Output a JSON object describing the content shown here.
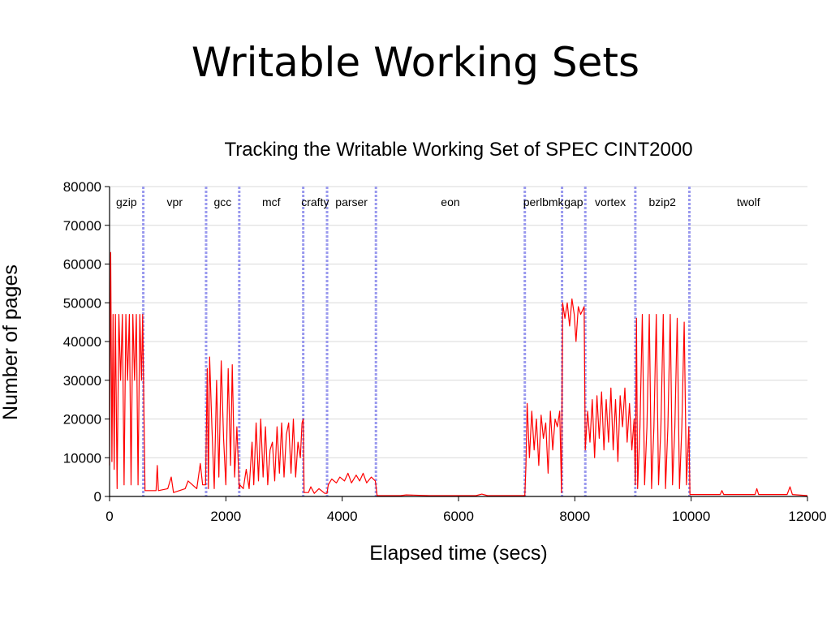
{
  "slide": {
    "title": "Writable Working Sets"
  },
  "colors": {
    "line": "#ff0000",
    "divider": "#9999ee",
    "grid": "#d9d9d9",
    "axis": "#000000"
  },
  "chart_data": {
    "type": "line",
    "title": "Tracking the Writable Working Set of SPEC CINT2000",
    "xlabel": "Elapsed time (secs)",
    "ylabel": "Number of pages",
    "xlim": [
      0,
      12000
    ],
    "ylim": [
      0,
      80000
    ],
    "xticks": [
      0,
      2000,
      4000,
      6000,
      8000,
      10000,
      12000
    ],
    "yticks": [
      0,
      10000,
      20000,
      30000,
      40000,
      50000,
      60000,
      70000,
      80000
    ],
    "grid": "horizontal",
    "benchmarks": [
      {
        "name": "gzip",
        "start": 0,
        "end": 580
      },
      {
        "name": "vpr",
        "start": 580,
        "end": 1660
      },
      {
        "name": "gcc",
        "start": 1660,
        "end": 2230
      },
      {
        "name": "mcf",
        "start": 2230,
        "end": 3330
      },
      {
        "name": "crafty",
        "start": 3330,
        "end": 3740
      },
      {
        "name": "parser",
        "start": 3740,
        "end": 4580
      },
      {
        "name": "eon",
        "start": 4580,
        "end": 7140
      },
      {
        "name": "perlbmk",
        "start": 7140,
        "end": 7780
      },
      {
        "name": "gap",
        "start": 7780,
        "end": 8180
      },
      {
        "name": "vortex",
        "start": 8180,
        "end": 9040
      },
      {
        "name": "bzip2",
        "start": 9040,
        "end": 9970
      },
      {
        "name": "twolf",
        "start": 9970,
        "end": 12000
      }
    ],
    "series": [
      {
        "name": "",
        "points": [
          [
            0,
            8000
          ],
          [
            20,
            63000
          ],
          [
            40,
            9000
          ],
          [
            60,
            47000
          ],
          [
            80,
            7000
          ],
          [
            100,
            47000
          ],
          [
            130,
            2000
          ],
          [
            160,
            47000
          ],
          [
            190,
            30000
          ],
          [
            220,
            47000
          ],
          [
            250,
            3000
          ],
          [
            280,
            47000
          ],
          [
            310,
            30000
          ],
          [
            340,
            47000
          ],
          [
            370,
            3000
          ],
          [
            400,
            47000
          ],
          [
            430,
            30000
          ],
          [
            460,
            47000
          ],
          [
            490,
            3000
          ],
          [
            520,
            47000
          ],
          [
            550,
            30000
          ],
          [
            570,
            47000
          ],
          [
            590,
            23000
          ],
          [
            610,
            1500
          ],
          [
            800,
            1500
          ],
          [
            820,
            8000
          ],
          [
            840,
            1500
          ],
          [
            1000,
            2000
          ],
          [
            1060,
            5000
          ],
          [
            1100,
            1000
          ],
          [
            1300,
            2000
          ],
          [
            1350,
            4000
          ],
          [
            1500,
            2000
          ],
          [
            1560,
            8500
          ],
          [
            1600,
            3000
          ],
          [
            1650,
            3000
          ],
          [
            1680,
            33000
          ],
          [
            1700,
            2000
          ],
          [
            1720,
            36000
          ],
          [
            1760,
            18000
          ],
          [
            1800,
            2000
          ],
          [
            1840,
            30000
          ],
          [
            1880,
            5000
          ],
          [
            1920,
            35000
          ],
          [
            1960,
            15000
          ],
          [
            2000,
            3000
          ],
          [
            2040,
            33000
          ],
          [
            2080,
            8000
          ],
          [
            2110,
            34000
          ],
          [
            2150,
            5000
          ],
          [
            2190,
            18000
          ],
          [
            2230,
            2000
          ],
          [
            2240,
            3000
          ],
          [
            2300,
            2000
          ],
          [
            2350,
            7000
          ],
          [
            2400,
            2000
          ],
          [
            2450,
            14000
          ],
          [
            2480,
            3000
          ],
          [
            2520,
            19000
          ],
          [
            2560,
            4000
          ],
          [
            2600,
            20000
          ],
          [
            2640,
            5000
          ],
          [
            2680,
            18000
          ],
          [
            2720,
            3000
          ],
          [
            2760,
            12000
          ],
          [
            2800,
            14000
          ],
          [
            2840,
            4000
          ],
          [
            2880,
            18000
          ],
          [
            2920,
            6000
          ],
          [
            2960,
            19000
          ],
          [
            3000,
            5000
          ],
          [
            3040,
            16000
          ],
          [
            3080,
            19000
          ],
          [
            3120,
            6000
          ],
          [
            3160,
            20000
          ],
          [
            3200,
            5000
          ],
          [
            3240,
            14000
          ],
          [
            3280,
            10000
          ],
          [
            3310,
            19000
          ],
          [
            3330,
            20000
          ],
          [
            3345,
            1000
          ],
          [
            3420,
            1000
          ],
          [
            3460,
            2500
          ],
          [
            3520,
            800
          ],
          [
            3600,
            2000
          ],
          [
            3700,
            800
          ],
          [
            3740,
            800
          ],
          [
            3760,
            3000
          ],
          [
            3820,
            4500
          ],
          [
            3900,
            3500
          ],
          [
            3960,
            5000
          ],
          [
            4040,
            4000
          ],
          [
            4100,
            6000
          ],
          [
            4160,
            3500
          ],
          [
            4240,
            5500
          ],
          [
            4300,
            4000
          ],
          [
            4360,
            6000
          ],
          [
            4420,
            3500
          ],
          [
            4500,
            5000
          ],
          [
            4570,
            4000
          ],
          [
            4600,
            200
          ],
          [
            5000,
            200
          ],
          [
            5100,
            400
          ],
          [
            5500,
            200
          ],
          [
            6300,
            200
          ],
          [
            6400,
            600
          ],
          [
            6500,
            200
          ],
          [
            7140,
            200
          ],
          [
            7160,
            8000
          ],
          [
            7180,
            24000
          ],
          [
            7220,
            10000
          ],
          [
            7260,
            22000
          ],
          [
            7300,
            12000
          ],
          [
            7340,
            20000
          ],
          [
            7380,
            8000
          ],
          [
            7420,
            21000
          ],
          [
            7460,
            15000
          ],
          [
            7500,
            19000
          ],
          [
            7540,
            6000
          ],
          [
            7580,
            22000
          ],
          [
            7620,
            12000
          ],
          [
            7660,
            20000
          ],
          [
            7700,
            18000
          ],
          [
            7740,
            22000
          ],
          [
            7770,
            1000
          ],
          [
            7790,
            50000
          ],
          [
            7830,
            46000
          ],
          [
            7870,
            50000
          ],
          [
            7910,
            44000
          ],
          [
            7950,
            51000
          ],
          [
            7990,
            47000
          ],
          [
            8020,
            40000
          ],
          [
            8060,
            49000
          ],
          [
            8100,
            47000
          ],
          [
            8160,
            49000
          ],
          [
            8180,
            12000
          ],
          [
            8220,
            22000
          ],
          [
            8260,
            14000
          ],
          [
            8300,
            25000
          ],
          [
            8340,
            10000
          ],
          [
            8380,
            26000
          ],
          [
            8420,
            15000
          ],
          [
            8460,
            27000
          ],
          [
            8500,
            12000
          ],
          [
            8540,
            25000
          ],
          [
            8580,
            14000
          ],
          [
            8620,
            28000
          ],
          [
            8660,
            12000
          ],
          [
            8700,
            25000
          ],
          [
            8740,
            9000
          ],
          [
            8780,
            26000
          ],
          [
            8820,
            18000
          ],
          [
            8860,
            28000
          ],
          [
            8900,
            14000
          ],
          [
            8940,
            24000
          ],
          [
            8980,
            12000
          ],
          [
            9020,
            20000
          ],
          [
            9040,
            3000
          ],
          [
            9060,
            46000
          ],
          [
            9080,
            2000
          ],
          [
            9120,
            18000
          ],
          [
            9160,
            47000
          ],
          [
            9200,
            3000
          ],
          [
            9240,
            18000
          ],
          [
            9280,
            47000
          ],
          [
            9320,
            2000
          ],
          [
            9360,
            18000
          ],
          [
            9400,
            47000
          ],
          [
            9440,
            3000
          ],
          [
            9480,
            18000
          ],
          [
            9520,
            47000
          ],
          [
            9560,
            2000
          ],
          [
            9600,
            18000
          ],
          [
            9640,
            47000
          ],
          [
            9680,
            3000
          ],
          [
            9720,
            18000
          ],
          [
            9760,
            46000
          ],
          [
            9800,
            2000
          ],
          [
            9840,
            18000
          ],
          [
            9880,
            45000
          ],
          [
            9920,
            3000
          ],
          [
            9960,
            18000
          ],
          [
            9980,
            500
          ],
          [
            10500,
            500
          ],
          [
            10530,
            1500
          ],
          [
            10560,
            500
          ],
          [
            11100,
            500
          ],
          [
            11130,
            2000
          ],
          [
            11160,
            500
          ],
          [
            11650,
            500
          ],
          [
            11700,
            2500
          ],
          [
            11740,
            500
          ],
          [
            12000,
            200
          ]
        ]
      }
    ]
  }
}
